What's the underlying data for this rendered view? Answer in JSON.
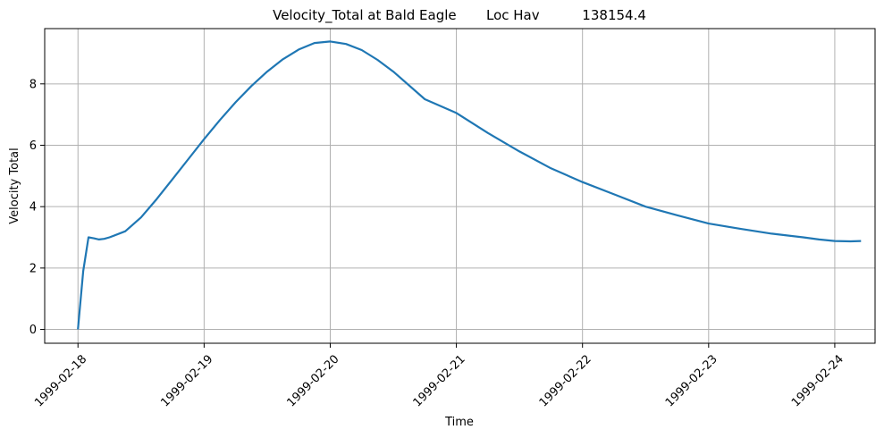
{
  "chart_data": {
    "type": "line",
    "title": "Velocity_Total at Bald Eagle       Loc Hav          138154.4",
    "xlabel": "Time",
    "ylabel": "Velocity Total",
    "xlim": [
      "1999-02-17 17:40",
      "1999-02-24 07:40"
    ],
    "ylim": [
      -0.45,
      9.8
    ],
    "x_ticks": [
      "1999-02-18",
      "1999-02-19",
      "1999-02-20",
      "1999-02-21",
      "1999-02-22",
      "1999-02-23",
      "1999-02-24"
    ],
    "y_ticks": [
      0,
      2,
      4,
      6,
      8
    ],
    "grid": true,
    "color": "#1f77b4",
    "series": [
      {
        "x": [
          "1999-02-18 00:00",
          "1999-02-18 01:00",
          "1999-02-18 02:00",
          "1999-02-18 03:00",
          "1999-02-18 04:00",
          "1999-02-18 05:00",
          "1999-02-18 06:00",
          "1999-02-18 09:00",
          "1999-02-18 12:00",
          "1999-02-18 15:00",
          "1999-02-18 18:00",
          "1999-02-18 21:00",
          "1999-02-19 00:00",
          "1999-02-19 03:00",
          "1999-02-19 06:00",
          "1999-02-19 09:00",
          "1999-02-19 12:00",
          "1999-02-19 15:00",
          "1999-02-19 18:00",
          "1999-02-19 21:00",
          "1999-02-20 00:00",
          "1999-02-20 03:00",
          "1999-02-20 06:00",
          "1999-02-20 09:00",
          "1999-02-20 12:00",
          "1999-02-20 18:00",
          "1999-02-21 00:00",
          "1999-02-21 06:00",
          "1999-02-21 12:00",
          "1999-02-21 18:00",
          "1999-02-22 00:00",
          "1999-02-22 06:00",
          "1999-02-22 12:00",
          "1999-02-22 18:00",
          "1999-02-23 00:00",
          "1999-02-23 06:00",
          "1999-02-23 12:00",
          "1999-02-23 18:00",
          "1999-02-23 21:00",
          "1999-02-24 00:00",
          "1999-02-24 03:00",
          "1999-02-24 05:00"
        ],
        "y": [
          0.0,
          1.9,
          3.0,
          2.97,
          2.93,
          2.95,
          3.0,
          3.2,
          3.65,
          4.25,
          4.9,
          5.55,
          6.2,
          6.82,
          7.4,
          7.93,
          8.4,
          8.8,
          9.12,
          9.33,
          9.38,
          9.3,
          9.1,
          8.78,
          8.4,
          7.5,
          7.05,
          6.4,
          5.8,
          5.25,
          4.8,
          4.4,
          4.0,
          3.72,
          3.45,
          3.28,
          3.12,
          3.0,
          2.93,
          2.88,
          2.87,
          2.88
        ]
      }
    ]
  }
}
